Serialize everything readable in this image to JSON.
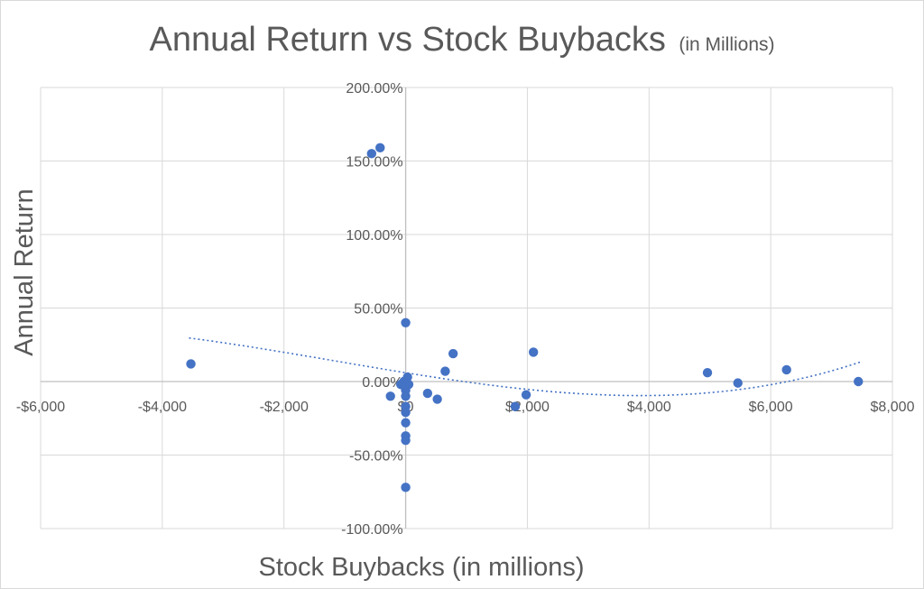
{
  "chart_data": {
    "type": "scatter",
    "title": "Annual Return vs Stock Buybacks",
    "title_suffix": "(in Millions)",
    "xlabel": "Stock Buybacks (in millions)",
    "ylabel": "Annual Return",
    "xlim": [
      -6000,
      8000
    ],
    "ylim": [
      -1.0,
      2.0
    ],
    "x_ticks": [
      -6000,
      -4000,
      -2000,
      0,
      2000,
      4000,
      6000,
      8000
    ],
    "x_tick_labels": [
      "-$6,000",
      "-$4,000",
      "-$2,000",
      "$0",
      "$2,000",
      "$4,000",
      "$6,000",
      "$8,000"
    ],
    "y_ticks": [
      2.0,
      1.5,
      1.0,
      0.5,
      0.0,
      -0.5,
      -1.0
    ],
    "y_tick_labels": [
      "200.00%",
      "150.00%",
      "100.00%",
      "50.00%",
      "0.00%",
      "-50.00%",
      "-100.00%"
    ],
    "grid": "vertical and horizontal major gridlines",
    "legend": "none",
    "marker_color": "#4472C4",
    "trendline": {
      "type": "polynomial",
      "style": "dotted",
      "color": "#4472C4",
      "x_range": [
        -3560,
        7470
      ]
    },
    "points": [
      {
        "x": -3530,
        "y": 0.12
      },
      {
        "x": -560,
        "y": 1.55
      },
      {
        "x": -420,
        "y": 1.59
      },
      {
        "x": -250,
        "y": -0.1
      },
      {
        "x": -80,
        "y": -0.02
      },
      {
        "x": -30,
        "y": 0.0
      },
      {
        "x": 0,
        "y": 0.4
      },
      {
        "x": 0,
        "y": -0.04
      },
      {
        "x": 0,
        "y": -0.06
      },
      {
        "x": 0,
        "y": -0.1
      },
      {
        "x": 0,
        "y": -0.17
      },
      {
        "x": 0,
        "y": -0.21
      },
      {
        "x": 0,
        "y": -0.28
      },
      {
        "x": 0,
        "y": -0.37
      },
      {
        "x": 0,
        "y": -0.4
      },
      {
        "x": 0,
        "y": -0.72
      },
      {
        "x": 30,
        "y": 0.03
      },
      {
        "x": 50,
        "y": -0.02
      },
      {
        "x": 360,
        "y": -0.08
      },
      {
        "x": 520,
        "y": -0.12
      },
      {
        "x": 650,
        "y": 0.07
      },
      {
        "x": 780,
        "y": 0.19
      },
      {
        "x": 1800,
        "y": -0.17
      },
      {
        "x": 1980,
        "y": -0.09
      },
      {
        "x": 2100,
        "y": 0.2
      },
      {
        "x": 4960,
        "y": 0.06
      },
      {
        "x": 5460,
        "y": -0.01
      },
      {
        "x": 6260,
        "y": 0.08
      },
      {
        "x": 7440,
        "y": 0.0
      }
    ]
  }
}
